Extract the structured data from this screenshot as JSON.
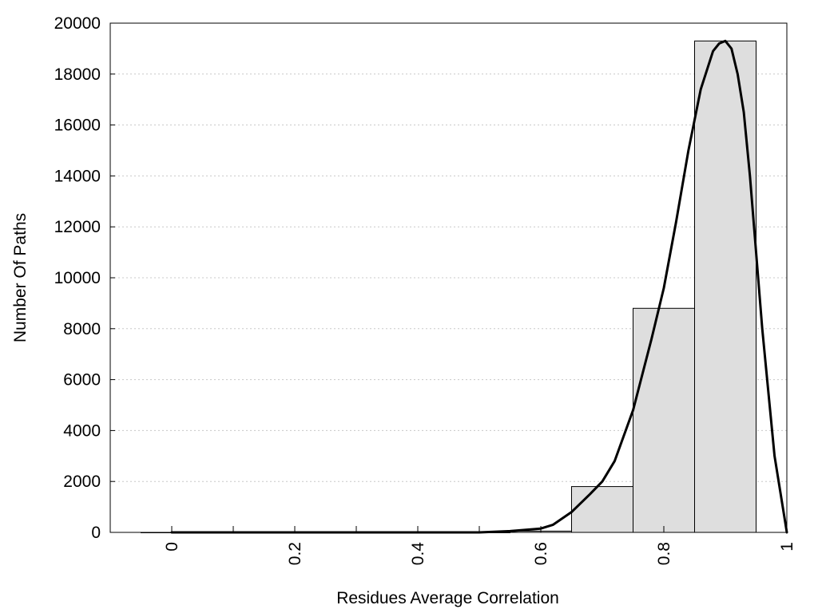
{
  "chart_data": {
    "type": "bar",
    "title": "",
    "xlabel": "Residues Average Correlation",
    "ylabel": "Number Of Paths",
    "xlim": [
      -0.1,
      1.0
    ],
    "ylim": [
      0,
      20000
    ],
    "x_ticks": [
      0,
      0.2,
      0.4,
      0.6,
      0.8,
      1
    ],
    "x_tick_labels": [
      "0",
      "0.2",
      "0.4",
      "0.6",
      "0.8",
      "1"
    ],
    "x_minor_ticks": [
      0.1,
      0.3,
      0.5
    ],
    "y_ticks": [
      0,
      2000,
      4000,
      6000,
      8000,
      10000,
      12000,
      14000,
      16000,
      18000,
      20000
    ],
    "y_tick_labels": [
      "0",
      "2000",
      "4000",
      "6000",
      "8000",
      "10000",
      "12000",
      "14000",
      "16000",
      "18000",
      "20000"
    ],
    "grid": "horizontal dotted",
    "bin_width": 0.1,
    "bins": [
      {
        "center": 0.0,
        "value": 0
      },
      {
        "center": 0.1,
        "value": 0
      },
      {
        "center": 0.2,
        "value": 0
      },
      {
        "center": 0.3,
        "value": 0
      },
      {
        "center": 0.4,
        "value": 0
      },
      {
        "center": 0.5,
        "value": 0
      },
      {
        "center": 0.6,
        "value": 50
      },
      {
        "center": 0.7,
        "value": 1800
      },
      {
        "center": 0.8,
        "value": 8800
      },
      {
        "center": 0.9,
        "value": 19300
      }
    ],
    "curve": {
      "x": [
        0,
        0.1,
        0.2,
        0.3,
        0.4,
        0.5,
        0.55,
        0.6,
        0.62,
        0.65,
        0.68,
        0.7,
        0.72,
        0.75,
        0.78,
        0.8,
        0.82,
        0.84,
        0.86,
        0.88,
        0.89,
        0.9,
        0.91,
        0.92,
        0.93,
        0.94,
        0.96,
        0.98,
        1.0
      ],
      "y": [
        0,
        0,
        0,
        0,
        0,
        0,
        50,
        150,
        300,
        800,
        1500,
        2000,
        2800,
        4800,
        7600,
        9600,
        12200,
        15000,
        17400,
        18900,
        19200,
        19300,
        19000,
        18000,
        16500,
        14000,
        8000,
        3000,
        0
      ]
    },
    "colors": {
      "bar_fill": "#dedede",
      "bar_stroke": "#000000",
      "curve": "#000000",
      "grid": "#c8c8c8"
    }
  }
}
